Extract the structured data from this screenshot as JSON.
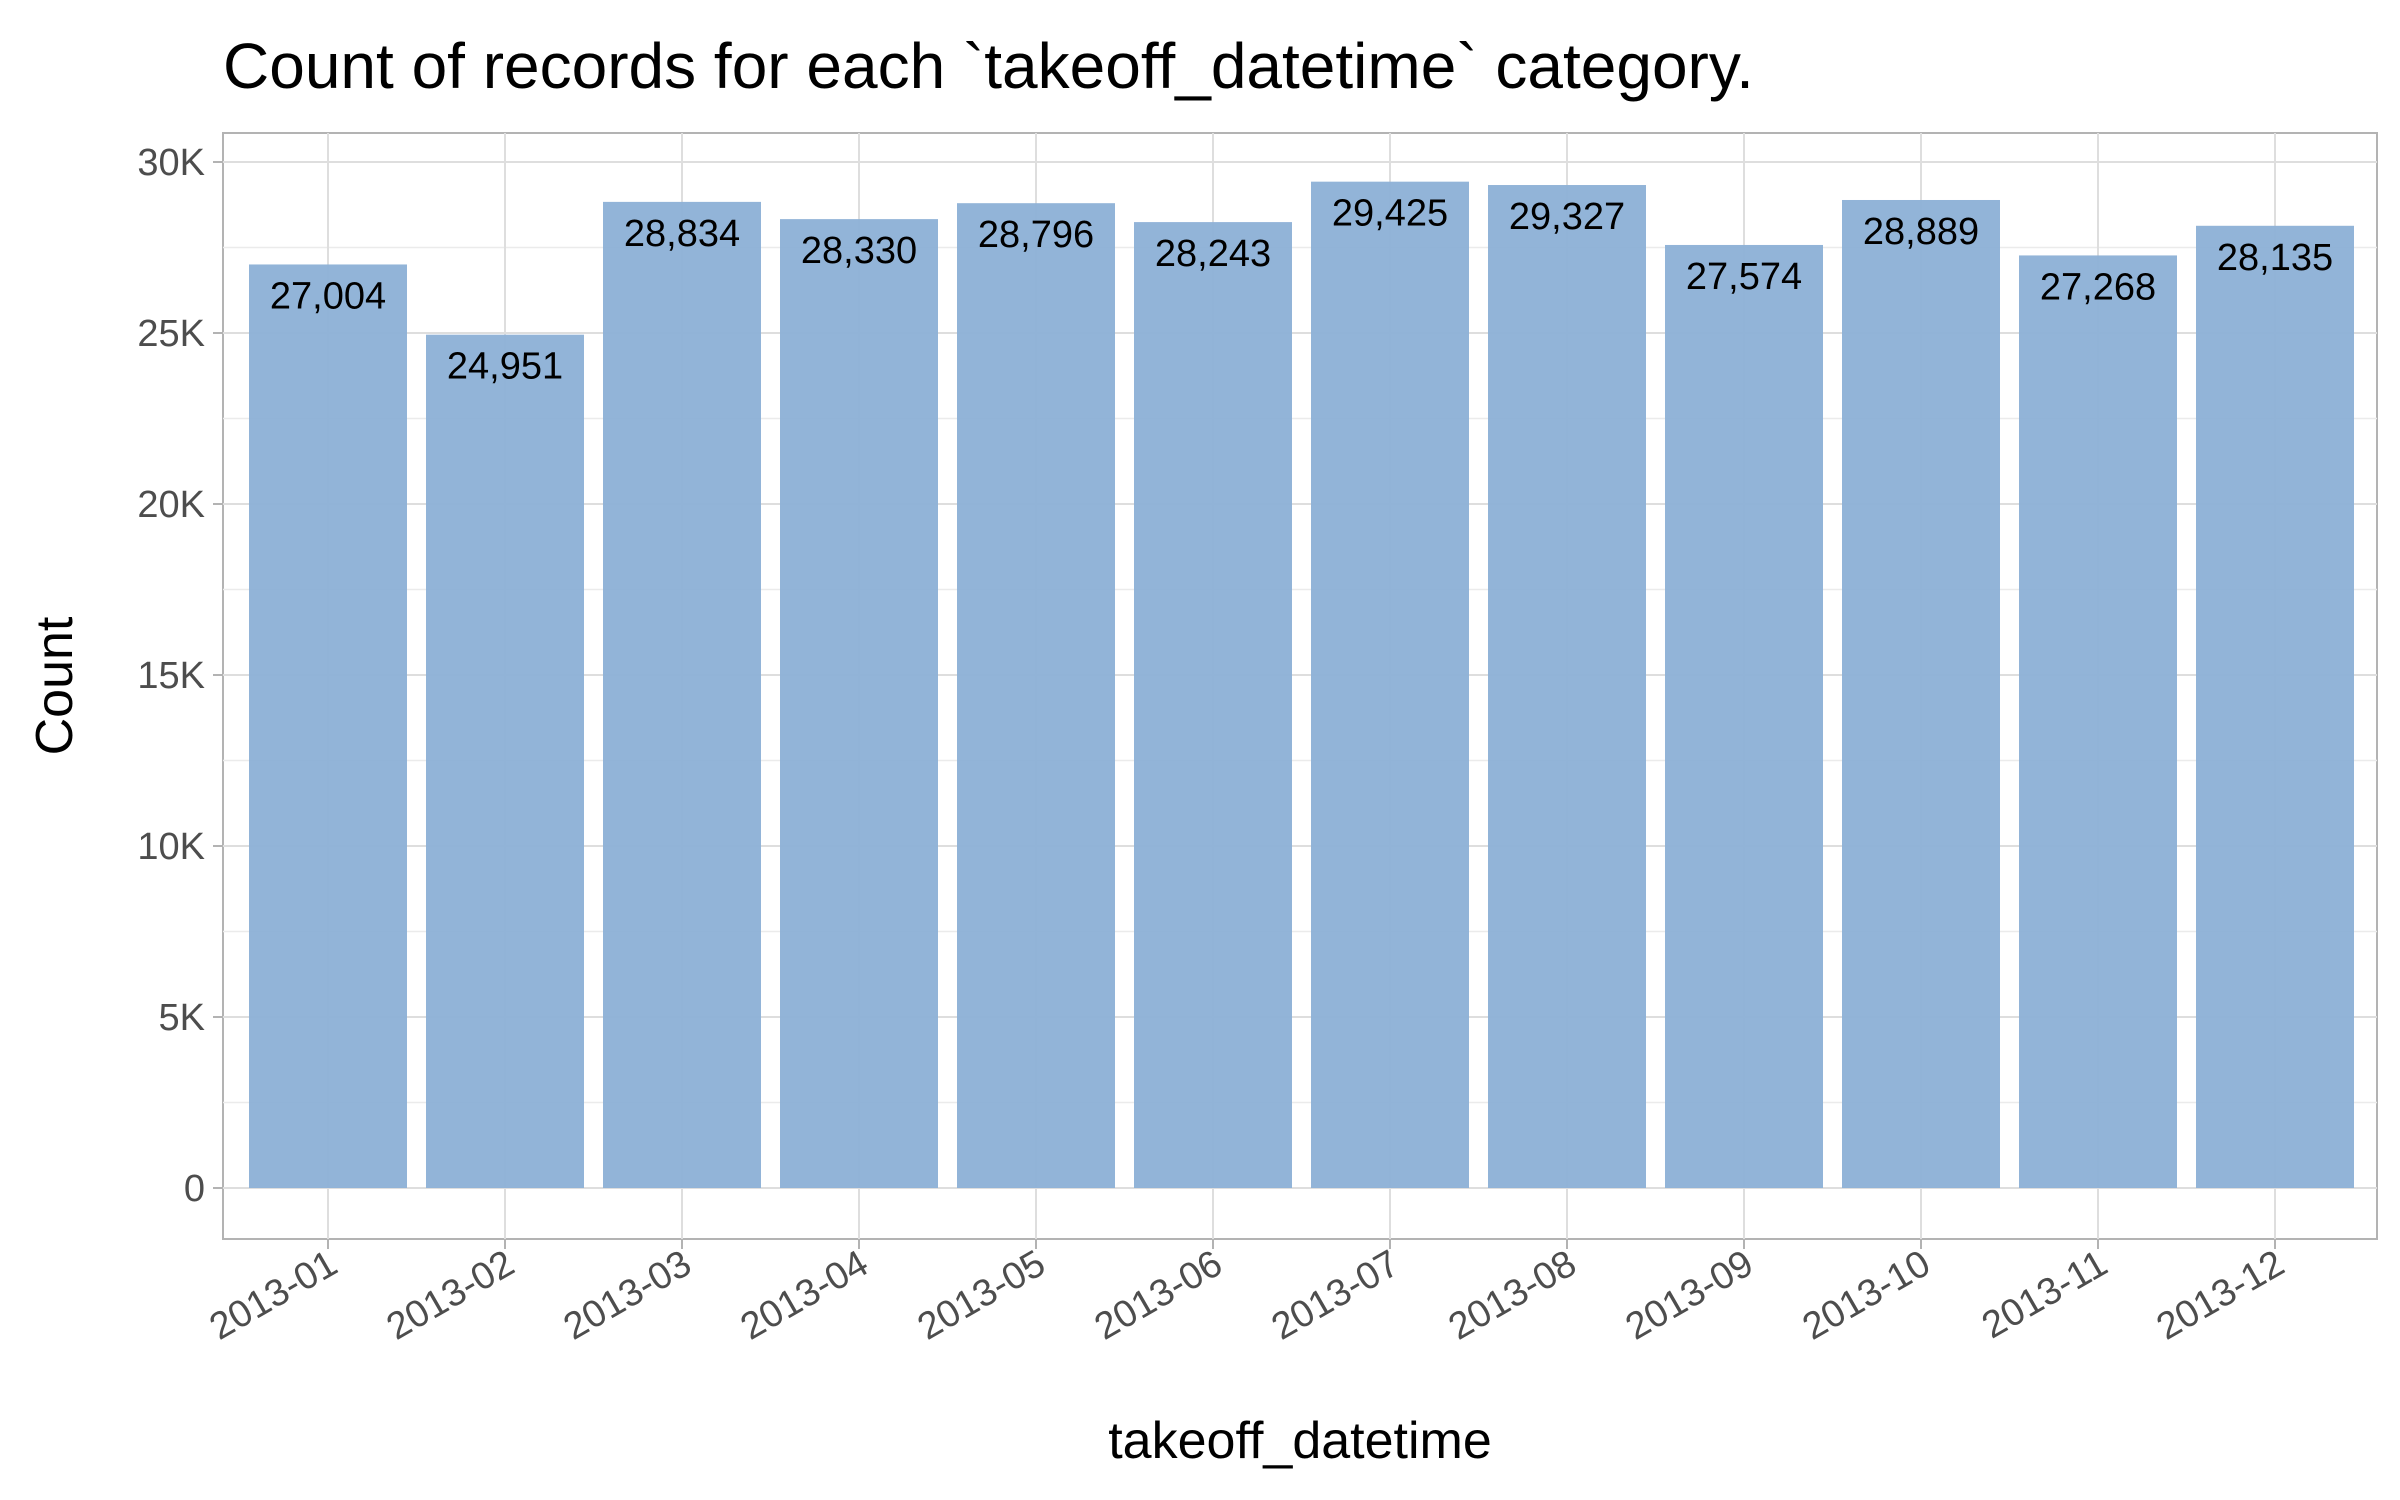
{
  "chart_data": {
    "type": "bar",
    "title": "Count of records for each `takeoff_datetime` category.",
    "xlabel": "takeoff_datetime",
    "ylabel": "Count",
    "categories": [
      "2013-01",
      "2013-02",
      "2013-03",
      "2013-04",
      "2013-05",
      "2013-06",
      "2013-07",
      "2013-08",
      "2013-09",
      "2013-10",
      "2013-11",
      "2013-12"
    ],
    "values": [
      27004,
      24951,
      28834,
      28330,
      28796,
      28243,
      29425,
      29327,
      27574,
      28889,
      27268,
      28135
    ],
    "value_labels": [
      "27,004",
      "24,951",
      "28,834",
      "28,330",
      "28,796",
      "28,243",
      "29,425",
      "29,327",
      "27,574",
      "28,889",
      "27,268",
      "28,135"
    ],
    "ylim": [
      0,
      30000
    ],
    "yticks": [
      0,
      5000,
      10000,
      15000,
      20000,
      25000,
      30000
    ],
    "ytick_labels": [
      "0",
      "5K",
      "10K",
      "15K",
      "20K",
      "25K",
      "30K"
    ],
    "grid": true,
    "bar_color": "#8cb0d6"
  }
}
